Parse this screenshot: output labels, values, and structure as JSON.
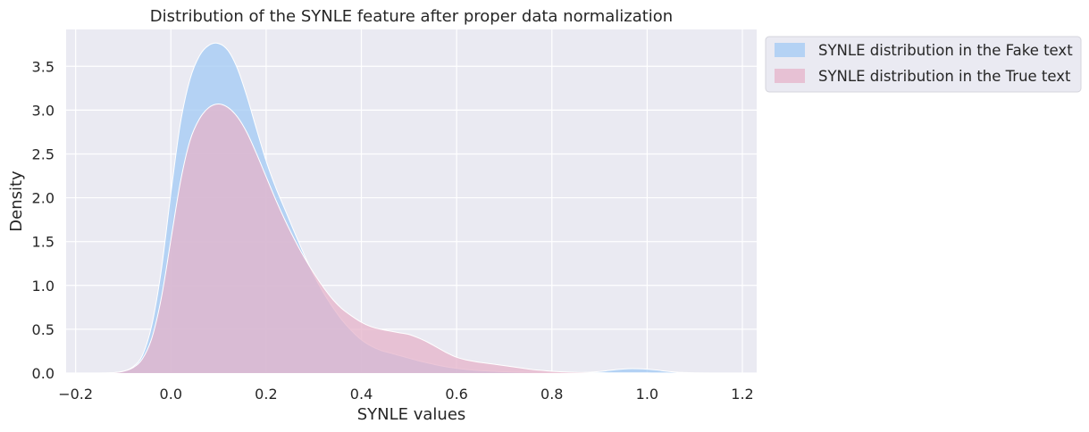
{
  "chart_data": {
    "type": "area",
    "title": "Distribution of the SYNLE feature after proper data normalization",
    "xlabel": "SYNLE values",
    "ylabel": "Density",
    "xlim": [
      -0.22,
      1.23
    ],
    "ylim": [
      0,
      3.92
    ],
    "xticks": [
      -0.2,
      0.0,
      0.2,
      0.4,
      0.6,
      0.8,
      1.0,
      1.2
    ],
    "xtick_labels": [
      "−0.2",
      "0.0",
      "0.2",
      "0.4",
      "0.6",
      "0.8",
      "1.0",
      "1.2"
    ],
    "yticks": [
      0.0,
      0.5,
      1.0,
      1.5,
      2.0,
      2.5,
      3.0,
      3.5
    ],
    "ytick_labels": [
      "0.0",
      "0.5",
      "1.0",
      "1.5",
      "2.0",
      "2.5",
      "3.0",
      "3.5"
    ],
    "grid": true,
    "legend_placement": "outside-top-right",
    "series": [
      {
        "name": "SYNLE distribution in the Fake text",
        "color": "#a1c9f4",
        "x": [
          -0.15,
          -0.12,
          -0.1,
          -0.08,
          -0.06,
          -0.04,
          -0.02,
          0.0,
          0.02,
          0.04,
          0.06,
          0.08,
          0.1,
          0.12,
          0.14,
          0.16,
          0.18,
          0.2,
          0.22,
          0.24,
          0.26,
          0.28,
          0.3,
          0.32,
          0.34,
          0.36,
          0.38,
          0.4,
          0.42,
          0.44,
          0.46,
          0.48,
          0.5,
          0.52,
          0.54,
          0.56,
          0.58,
          0.6,
          0.62,
          0.64,
          0.66,
          0.68,
          0.7,
          0.72,
          0.74,
          0.76,
          0.78,
          0.8,
          0.82,
          0.84,
          0.86,
          0.88,
          0.9,
          0.92,
          0.94,
          0.96,
          0.98,
          1.0,
          1.02,
          1.04,
          1.06,
          1.08,
          1.1,
          1.12,
          1.15
        ],
        "values": [
          0.0,
          0.005,
          0.02,
          0.07,
          0.2,
          0.55,
          1.18,
          2.05,
          2.85,
          3.35,
          3.62,
          3.74,
          3.76,
          3.68,
          3.47,
          3.15,
          2.78,
          2.42,
          2.12,
          1.86,
          1.6,
          1.35,
          1.12,
          0.92,
          0.75,
          0.6,
          0.48,
          0.38,
          0.31,
          0.26,
          0.23,
          0.2,
          0.17,
          0.14,
          0.115,
          0.09,
          0.07,
          0.055,
          0.042,
          0.032,
          0.025,
          0.02,
          0.015,
          0.012,
          0.01,
          0.008,
          0.006,
          0.005,
          0.004,
          0.004,
          0.005,
          0.01,
          0.018,
          0.03,
          0.042,
          0.05,
          0.05,
          0.045,
          0.035,
          0.022,
          0.012,
          0.006,
          0.003,
          0.001,
          0.0
        ]
      },
      {
        "name": "SYNLE distribution in the True text",
        "color": "#e5b3c9",
        "x": [
          -0.15,
          -0.12,
          -0.1,
          -0.08,
          -0.06,
          -0.04,
          -0.02,
          0.0,
          0.02,
          0.04,
          0.06,
          0.08,
          0.1,
          0.12,
          0.14,
          0.16,
          0.18,
          0.2,
          0.22,
          0.24,
          0.26,
          0.28,
          0.3,
          0.32,
          0.34,
          0.36,
          0.38,
          0.4,
          0.42,
          0.44,
          0.46,
          0.48,
          0.5,
          0.52,
          0.54,
          0.56,
          0.58,
          0.6,
          0.62,
          0.64,
          0.66,
          0.68,
          0.7,
          0.72,
          0.74,
          0.76,
          0.78,
          0.8,
          0.82,
          0.84,
          0.86,
          0.88,
          0.9,
          0.92,
          0.94,
          0.96,
          0.98,
          1.0,
          1.02,
          1.04,
          1.06,
          1.08,
          1.1,
          1.12,
          1.15
        ],
        "values": [
          0.0,
          0.005,
          0.02,
          0.06,
          0.16,
          0.4,
          0.86,
          1.52,
          2.18,
          2.65,
          2.9,
          3.03,
          3.07,
          3.03,
          2.92,
          2.74,
          2.5,
          2.24,
          1.98,
          1.74,
          1.52,
          1.32,
          1.14,
          0.98,
          0.84,
          0.73,
          0.65,
          0.58,
          0.53,
          0.5,
          0.48,
          0.46,
          0.44,
          0.4,
          0.35,
          0.29,
          0.23,
          0.18,
          0.15,
          0.13,
          0.115,
          0.1,
          0.085,
          0.07,
          0.055,
          0.04,
          0.03,
          0.02,
          0.014,
          0.01,
          0.007,
          0.005,
          0.004,
          0.003,
          0.002,
          0.002,
          0.002,
          0.002,
          0.001,
          0.001,
          0.0,
          0.0,
          0.0,
          0.0,
          0.0
        ]
      }
    ]
  },
  "colors": {
    "plot_background": "#eaeaf2",
    "grid": "#ffffff",
    "text": "#262626"
  }
}
